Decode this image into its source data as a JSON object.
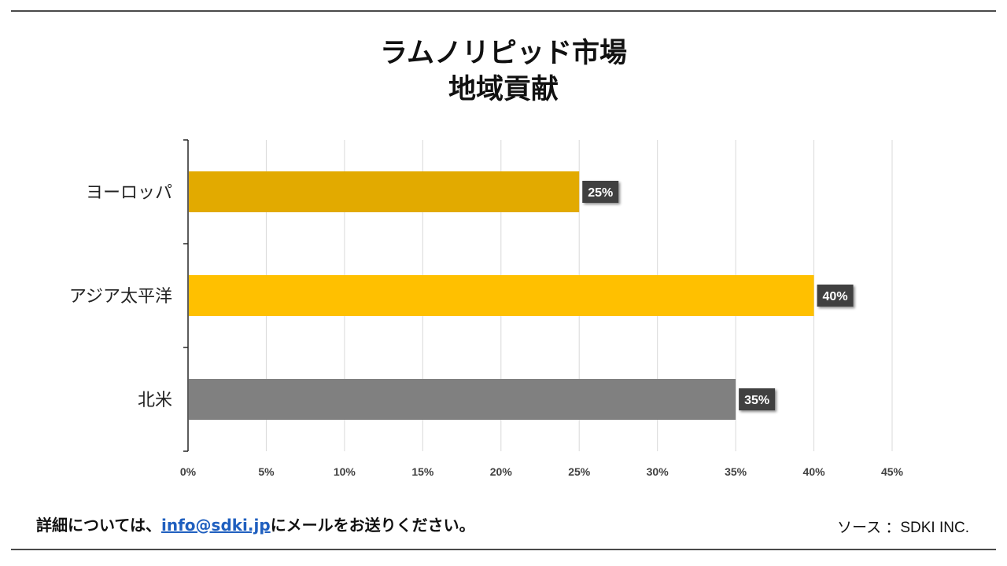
{
  "title_line1": "ラムノリピッド市場",
  "title_line2": "地域貢献",
  "footer": {
    "prefix": "詳細については、",
    "link": "info@sdki.jp",
    "suffix": "にメールをお送りください。",
    "source": "ソース ：SDKI INC."
  },
  "chart_data": {
    "type": "bar",
    "orientation": "horizontal",
    "title": "ラムノリピッド市場 地域貢献",
    "categories": [
      "ヨーロッパ",
      "アジア太平洋",
      "北米"
    ],
    "values": [
      25,
      40,
      35
    ],
    "value_labels": [
      "25%",
      "40%",
      "35%"
    ],
    "colors": [
      "#e2aa00",
      "#ffc000",
      "#808080"
    ],
    "label_bg": "#404040",
    "xlim": [
      0,
      45
    ],
    "xticks": [
      0,
      5,
      10,
      15,
      20,
      25,
      30,
      35,
      40,
      45
    ],
    "xtick_labels": [
      "0%",
      "5%",
      "10%",
      "15%",
      "20%",
      "25%",
      "30%",
      "35%",
      "40%",
      "45%"
    ],
    "grid": true,
    "xlabel": "",
    "ylabel": ""
  }
}
